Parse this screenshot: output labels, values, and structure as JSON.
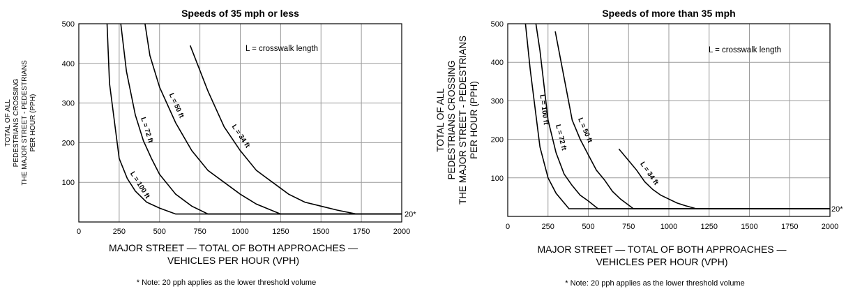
{
  "chart_data": [
    {
      "type": "line",
      "title": "Speeds of 35 mph or less",
      "xlabel": [
        "MAJOR STREET — TOTAL OF BOTH APPROACHES —",
        "VEHICLES PER HOUR (VPH)"
      ],
      "ylabel": [
        "TOTAL OF ALL",
        "PEDESTRIANS CROSSING",
        "THE MAJOR STREET - PEDESTRIANS",
        "PER HOUR (PPH)"
      ],
      "xlim": [
        0,
        2000
      ],
      "ylim": [
        0,
        500
      ],
      "xticks": [
        0,
        250,
        500,
        750,
        1000,
        1250,
        1500,
        1750,
        2000
      ],
      "yticks": [
        100,
        200,
        300,
        400,
        500
      ],
      "grid": true,
      "annotation": "L = crosswalk length",
      "threshold_label": "20*",
      "note": "* Note: 20 pph applies as the lower threshold volume",
      "series": [
        {
          "name": "L = 100 ft",
          "points": [
            [
              175,
              500
            ],
            [
              190,
              350
            ],
            [
              250,
              160
            ],
            [
              300,
              110
            ],
            [
              350,
              78
            ],
            [
              420,
              50
            ],
            [
              500,
              35
            ],
            [
              600,
              20
            ],
            [
              2000,
              20
            ]
          ]
        },
        {
          "name": "L = 72 ft",
          "points": [
            [
              260,
              500
            ],
            [
              295,
              380
            ],
            [
              350,
              270
            ],
            [
              400,
              205
            ],
            [
              450,
              160
            ],
            [
              500,
              120
            ],
            [
              600,
              70
            ],
            [
              700,
              40
            ],
            [
              800,
              20
            ],
            [
              2000,
              20
            ]
          ]
        },
        {
          "name": "L = 50 ft",
          "points": [
            [
              410,
              500
            ],
            [
              440,
              420
            ],
            [
              500,
              340
            ],
            [
              600,
              250
            ],
            [
              700,
              180
            ],
            [
              800,
              130
            ],
            [
              900,
              100
            ],
            [
              1000,
              70
            ],
            [
              1100,
              45
            ],
            [
              1250,
              20
            ],
            [
              2000,
              20
            ]
          ]
        },
        {
          "name": "L = 34 ft",
          "points": [
            [
              690,
              445
            ],
            [
              800,
              330
            ],
            [
              900,
              240
            ],
            [
              1000,
              180
            ],
            [
              1100,
              130
            ],
            [
              1200,
              100
            ],
            [
              1300,
              70
            ],
            [
              1400,
              50
            ],
            [
              1500,
              40
            ],
            [
              1600,
              30
            ],
            [
              1720,
              20
            ],
            [
              2000,
              20
            ]
          ]
        }
      ]
    },
    {
      "type": "line",
      "title": "Speeds of more than 35 mph",
      "xlabel": [
        "MAJOR STREET — TOTAL OF BOTH APPROACHES —",
        "VEHICLES PER HOUR (VPH)"
      ],
      "ylabel": [
        "TOTAL OF ALL",
        "PEDESTRIANS CROSSING",
        "THE MAJOR STREET - PEDESTRIANS",
        "PER HOUR (PPH)"
      ],
      "xlim": [
        0,
        2000
      ],
      "ylim": [
        0,
        500
      ],
      "xticks": [
        0,
        250,
        500,
        750,
        1000,
        1250,
        1500,
        1750,
        2000
      ],
      "yticks": [
        100,
        200,
        300,
        400,
        500
      ],
      "grid": true,
      "annotation": "L = crosswalk length",
      "threshold_label": "20*",
      "note": "* Note: 20 pph applies as the lower threshold volume",
      "series": [
        {
          "name": "L = 100 ft",
          "points": [
            [
              110,
              500
            ],
            [
              140,
              380
            ],
            [
              200,
              180
            ],
            [
              250,
              100
            ],
            [
              300,
              60
            ],
            [
              380,
              20
            ],
            [
              2000,
              20
            ]
          ]
        },
        {
          "name": "L = 72 ft",
          "points": [
            [
              175,
              500
            ],
            [
              200,
              430
            ],
            [
              250,
              250
            ],
            [
              300,
              165
            ],
            [
              350,
              110
            ],
            [
              400,
              80
            ],
            [
              450,
              55
            ],
            [
              500,
              40
            ],
            [
              560,
              20
            ],
            [
              2000,
              20
            ]
          ]
        },
        {
          "name": "L = 50 ft",
          "points": [
            [
              295,
              480
            ],
            [
              350,
              360
            ],
            [
              400,
              250
            ],
            [
              450,
              200
            ],
            [
              500,
              160
            ],
            [
              550,
              120
            ],
            [
              600,
              95
            ],
            [
              650,
              65
            ],
            [
              700,
              45
            ],
            [
              780,
              20
            ],
            [
              2000,
              20
            ]
          ]
        },
        {
          "name": "L = 34 ft",
          "points": [
            [
              690,
              175
            ],
            [
              750,
              145
            ],
            [
              800,
              120
            ],
            [
              850,
              90
            ],
            [
              900,
              70
            ],
            [
              950,
              55
            ],
            [
              1000,
              45
            ],
            [
              1050,
              35
            ],
            [
              1100,
              28
            ],
            [
              1170,
              20
            ],
            [
              2000,
              20
            ]
          ]
        }
      ]
    }
  ]
}
